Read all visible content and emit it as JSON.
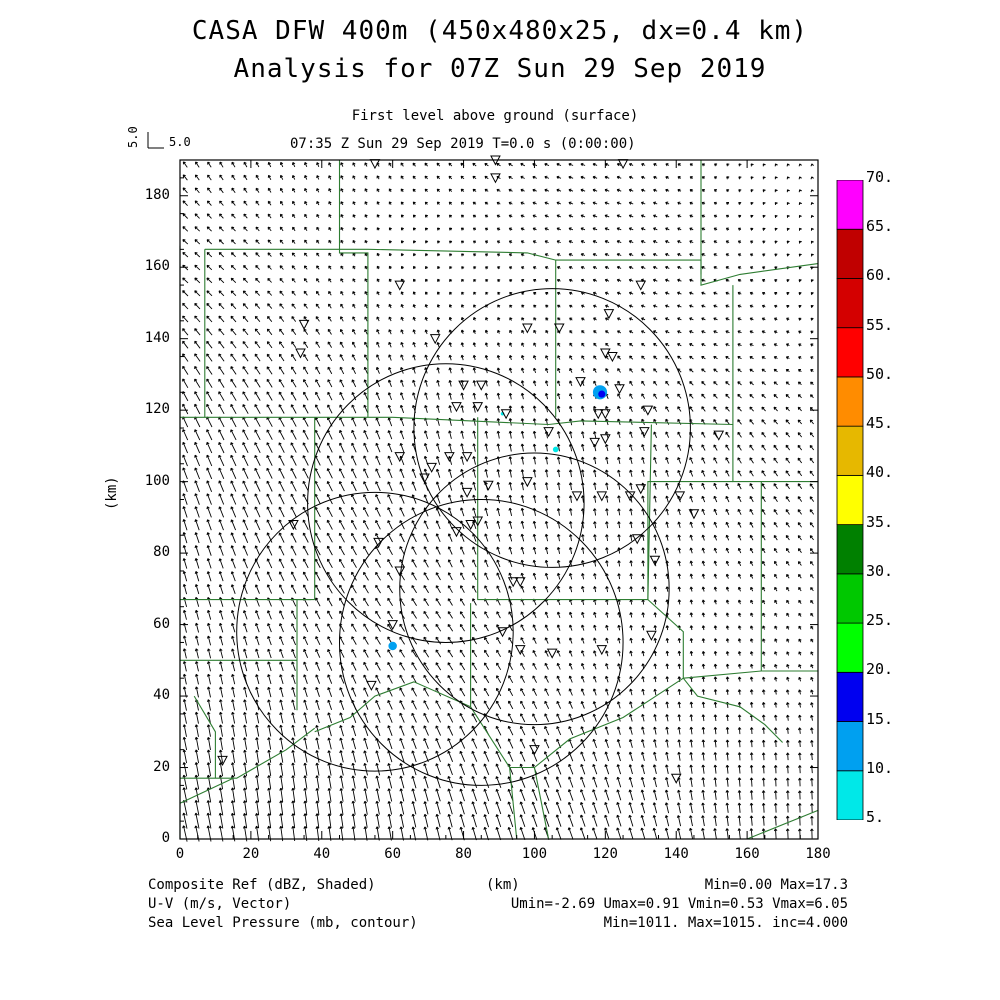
{
  "title": {
    "line1": "CASA DFW 400m (450x480x25, dx=0.4 km)",
    "line2": "Analysis for 07Z Sun 29 Sep 2019"
  },
  "subtitle": {
    "level": "First level above ground (surface)",
    "time": "07:35 Z Sun 29 Sep 2019    T=0.0 s (0:00:00)"
  },
  "vector_key": {
    "rotated_label": "5.0",
    "label": "5.0"
  },
  "axes": {
    "x_label": "(km)",
    "y_label": "(km)",
    "x_ticks": [
      "0",
      "20",
      "40",
      "60",
      "80",
      "100",
      "120",
      "140",
      "160",
      "180"
    ],
    "y_ticks": [
      "0",
      "20",
      "40",
      "60",
      "80",
      "100",
      "120",
      "140",
      "160",
      "180"
    ]
  },
  "colorbar": {
    "labels": [
      "5.",
      "10.",
      "15.",
      "20.",
      "25.",
      "30.",
      "35.",
      "40.",
      "45.",
      "50.",
      "55.",
      "60.",
      "65.",
      "70."
    ],
    "colors": [
      "#00e8e8",
      "#00a0f0",
      "#0000f0",
      "#00ff00",
      "#00c800",
      "#008000",
      "#ffff00",
      "#e6b800",
      "#ff8c00",
      "#ff0000",
      "#d40000",
      "#c00000",
      "#ff00ff"
    ]
  },
  "footer": {
    "left1": "Composite Ref (dBZ, Shaded)",
    "left2": "U-V (m/s, Vector)",
    "left3": "Sea Level Pressure (mb, contour)",
    "center": "(km)",
    "right1": "Min=0.00 Max=17.3",
    "right2": "Umin=-2.69 Umax=0.91 Vmin=0.53 Vmax=6.05",
    "right3": "Min=1011. Max=1015. inc=4.000"
  },
  "map": {
    "domain_km": [
      0,
      180,
      0,
      190
    ],
    "county_color": "#2e7d32",
    "radar_range_rings_km": [
      [
        105,
        115,
        39
      ],
      [
        75,
        94,
        39
      ],
      [
        55,
        58,
        39
      ],
      [
        85,
        55,
        40
      ],
      [
        100,
        70,
        38
      ]
    ],
    "reflectivity_echoes_km": [
      [
        118.5,
        125,
        2,
        "#00a0f0"
      ],
      [
        119,
        124.5,
        1,
        "#0000f0"
      ],
      [
        106,
        109,
        0.8,
        "#00e8e8"
      ],
      [
        60,
        54,
        1.2,
        "#00a0f0"
      ],
      [
        91,
        119,
        0.5,
        "#00e8e8"
      ]
    ],
    "stations_km": [
      [
        55,
        189
      ],
      [
        89,
        190
      ],
      [
        125,
        189
      ],
      [
        89,
        185
      ],
      [
        62,
        155
      ],
      [
        130,
        155
      ],
      [
        35,
        144
      ],
      [
        121,
        147
      ],
      [
        98,
        143
      ],
      [
        107,
        143
      ],
      [
        34,
        136
      ],
      [
        72,
        140
      ],
      [
        120,
        136
      ],
      [
        122,
        135
      ],
      [
        113,
        128
      ],
      [
        80,
        127
      ],
      [
        85,
        127
      ],
      [
        124,
        126
      ],
      [
        78,
        121
      ],
      [
        84,
        121
      ],
      [
        92,
        119
      ],
      [
        118,
        119
      ],
      [
        120,
        119
      ],
      [
        132,
        120
      ],
      [
        104,
        114
      ],
      [
        117,
        111
      ],
      [
        120,
        112
      ],
      [
        131,
        114
      ],
      [
        152,
        113
      ],
      [
        62,
        107
      ],
      [
        76,
        107
      ],
      [
        81,
        107
      ],
      [
        71,
        104
      ],
      [
        69,
        101
      ],
      [
        81,
        97
      ],
      [
        87,
        99
      ],
      [
        98,
        100
      ],
      [
        130,
        98
      ],
      [
        112,
        96
      ],
      [
        119,
        96
      ],
      [
        127,
        96
      ],
      [
        141,
        96
      ],
      [
        145,
        91
      ],
      [
        32,
        88
      ],
      [
        78,
        86
      ],
      [
        82,
        88
      ],
      [
        84,
        89
      ],
      [
        129,
        84
      ],
      [
        56,
        83
      ],
      [
        62,
        75
      ],
      [
        94,
        72
      ],
      [
        96,
        72
      ],
      [
        134,
        78
      ],
      [
        60,
        60
      ],
      [
        91,
        58
      ],
      [
        96,
        53
      ],
      [
        105,
        52
      ],
      [
        119,
        53
      ],
      [
        133,
        57
      ],
      [
        54,
        43
      ],
      [
        100,
        25
      ],
      [
        140,
        17
      ],
      [
        12,
        22
      ]
    ]
  }
}
